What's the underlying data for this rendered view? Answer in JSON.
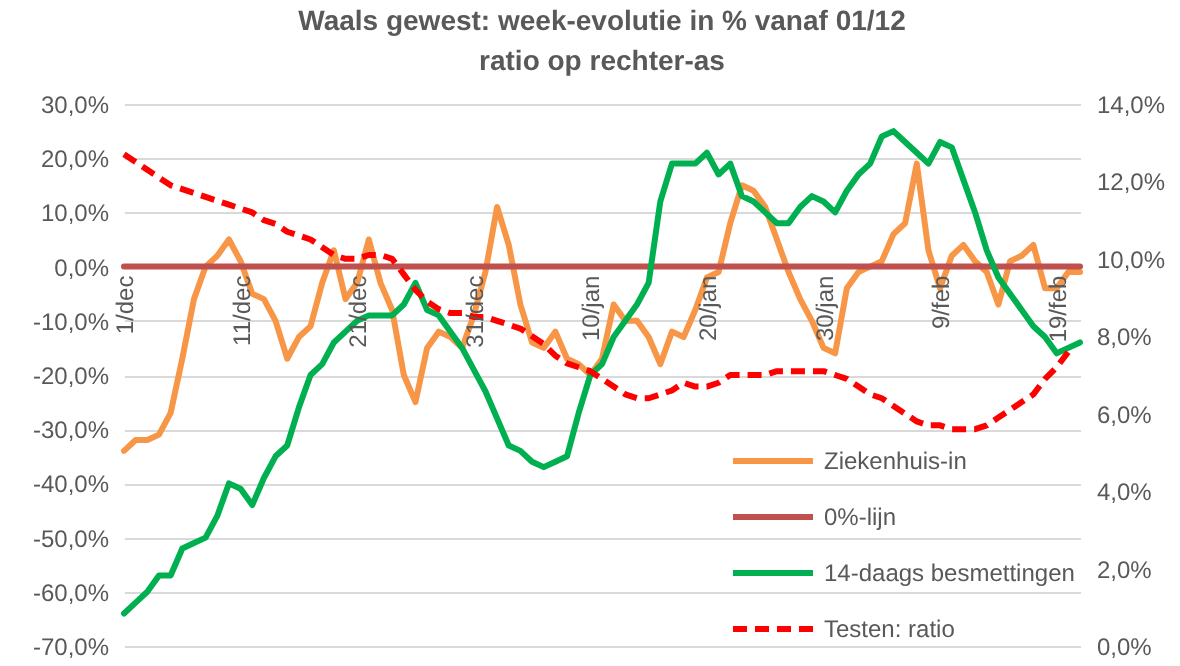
{
  "chart_data": {
    "type": "line",
    "title": "Waals gewest: week-evolutie in % vanaf 01/12",
    "subtitle": "ratio op rechter-as",
    "categories": [
      "1/dec",
      null,
      null,
      null,
      null,
      null,
      null,
      null,
      null,
      null,
      "11/dec",
      null,
      null,
      null,
      null,
      null,
      null,
      null,
      null,
      null,
      "21/dec",
      null,
      null,
      null,
      null,
      null,
      null,
      null,
      null,
      null,
      "31/dec",
      null,
      null,
      null,
      null,
      null,
      null,
      null,
      null,
      null,
      "10/jan",
      null,
      null,
      null,
      null,
      null,
      null,
      null,
      null,
      null,
      "20/jan",
      null,
      null,
      null,
      null,
      null,
      null,
      null,
      null,
      null,
      "30/jan",
      null,
      null,
      null,
      null,
      null,
      null,
      null,
      null,
      null,
      "9/feb",
      null,
      null,
      null,
      null,
      null,
      null,
      null,
      null,
      null,
      "19/feb",
      null,
      null
    ],
    "series": [
      {
        "name": "Ziekenhuis-in",
        "color": "#f79646",
        "line_style": "solid",
        "values": [
          -34,
          -32,
          -32,
          -31,
          -27,
          -17,
          -6,
          0,
          2,
          5,
          1,
          -5,
          -6,
          -10,
          -17,
          -13,
          -11,
          -3,
          3,
          -6,
          -3,
          5,
          -3,
          -8,
          -20,
          -25,
          -15,
          -12,
          -13,
          -15,
          -9,
          -1,
          11,
          4,
          -7,
          -14,
          -15,
          -12,
          -17,
          -18,
          -20,
          -17,
          -7,
          -10,
          -10,
          -13,
          -18,
          -12,
          -13,
          -8,
          -2,
          -1,
          8,
          15,
          14,
          11,
          5,
          -1,
          -6,
          -10,
          -15,
          -16,
          -4,
          -1,
          0,
          1,
          6,
          8,
          19,
          3,
          -4,
          2,
          4,
          1,
          -1,
          -7,
          1,
          2,
          4,
          -4,
          -4,
          -1,
          -1
        ]
      },
      {
        "name": "0%-lijn",
        "color": "#c0504d",
        "line_style": "solid",
        "values": [
          0,
          0,
          0,
          0,
          0,
          0,
          0,
          0,
          0,
          0,
          0,
          0,
          0,
          0,
          0,
          0,
          0,
          0,
          0,
          0,
          0,
          0,
          0,
          0,
          0,
          0,
          0,
          0,
          0,
          0,
          0,
          0,
          0,
          0,
          0,
          0,
          0,
          0,
          0,
          0,
          0,
          0,
          0,
          0,
          0,
          0,
          0,
          0,
          0,
          0,
          0,
          0,
          0,
          0,
          0,
          0,
          0,
          0,
          0,
          0,
          0,
          0,
          0,
          0,
          0,
          0,
          0,
          0,
          0,
          0,
          0,
          0,
          0,
          0,
          0,
          0,
          0,
          0,
          0,
          0,
          0,
          0,
          0
        ]
      },
      {
        "name": "14-daags besmettingen",
        "color": "#00b050",
        "line_style": "solid",
        "values": [
          -64,
          -62,
          -60,
          -57,
          -57,
          -52,
          -51,
          -50,
          -46,
          -40,
          -41,
          -44,
          -39,
          -35,
          -33,
          -26,
          -20,
          -18,
          -14,
          -12,
          -10,
          -9,
          -9,
          -9,
          -7,
          -3,
          -8,
          -9,
          -12,
          -15,
          -19,
          -23,
          -28,
          -33,
          -34,
          -36,
          -37,
          -36,
          -35,
          -27,
          -20,
          -18,
          -13,
          -10,
          -7,
          -3,
          12,
          19,
          19,
          19,
          21,
          17,
          19,
          13,
          12,
          10,
          8,
          8,
          11,
          13,
          12,
          10,
          14,
          17,
          19,
          24,
          25,
          23,
          21,
          19,
          23,
          22,
          16,
          10,
          3,
          -2,
          -5,
          -8,
          -11,
          -13,
          -16,
          -15,
          -14
        ]
      },
      {
        "name": "Testen: ratio",
        "color": "#ff0000",
        "line_style": "dashed",
        "axis": "y2",
        "values": [
          12.7,
          12.5,
          12.3,
          12.1,
          11.9,
          11.8,
          11.7,
          11.6,
          11.5,
          11.4,
          11.3,
          11.2,
          11.0,
          10.9,
          10.7,
          10.6,
          10.5,
          10.3,
          10.1,
          10.0,
          10.0,
          10.1,
          10.1,
          10.0,
          9.6,
          9.2,
          8.9,
          8.7,
          8.6,
          8.6,
          8.5,
          8.5,
          8.4,
          8.3,
          8.2,
          8.0,
          7.8,
          7.5,
          7.3,
          7.2,
          7.1,
          6.9,
          6.7,
          6.5,
          6.4,
          6.4,
          6.5,
          6.6,
          6.8,
          6.7,
          6.7,
          6.8,
          7.0,
          7.0,
          7.0,
          7.0,
          7.1,
          7.1,
          7.1,
          7.1,
          7.1,
          7.0,
          6.9,
          6.7,
          6.5,
          6.4,
          6.2,
          6.0,
          5.8,
          5.7,
          5.7,
          5.6,
          5.6,
          5.6,
          5.7,
          5.9,
          6.1,
          6.3,
          6.5,
          6.9,
          7.2,
          7.6,
          null
        ]
      }
    ],
    "ylim": [
      -70,
      30
    ],
    "yticks": [
      {
        "value": -70,
        "label": "-70,0%"
      },
      {
        "value": -60,
        "label": "-60,0%"
      },
      {
        "value": -50,
        "label": "-50,0%"
      },
      {
        "value": -40,
        "label": "-40,0%"
      },
      {
        "value": -30,
        "label": "-30,0%"
      },
      {
        "value": -20,
        "label": "-20,0%"
      },
      {
        "value": -10,
        "label": "-10,0%"
      },
      {
        "value": 0,
        "label": "0,0%"
      },
      {
        "value": 10,
        "label": "10,0%"
      },
      {
        "value": 20,
        "label": "20,0%"
      },
      {
        "value": 30,
        "label": "30,0%"
      }
    ],
    "y2lim": [
      0,
      14
    ],
    "y2ticks": [
      {
        "value": 0,
        "label": "0,0%"
      },
      {
        "value": 2,
        "label": "2,0%"
      },
      {
        "value": 4,
        "label": "4,0%"
      },
      {
        "value": 6,
        "label": "6,0%"
      },
      {
        "value": 8,
        "label": "8,0%"
      },
      {
        "value": 10,
        "label": "10,0%"
      },
      {
        "value": 12,
        "label": "12,0%"
      },
      {
        "value": 14,
        "label": "14,0%"
      }
    ],
    "grid": "y",
    "legend": "bottom right",
    "marker": "none"
  }
}
